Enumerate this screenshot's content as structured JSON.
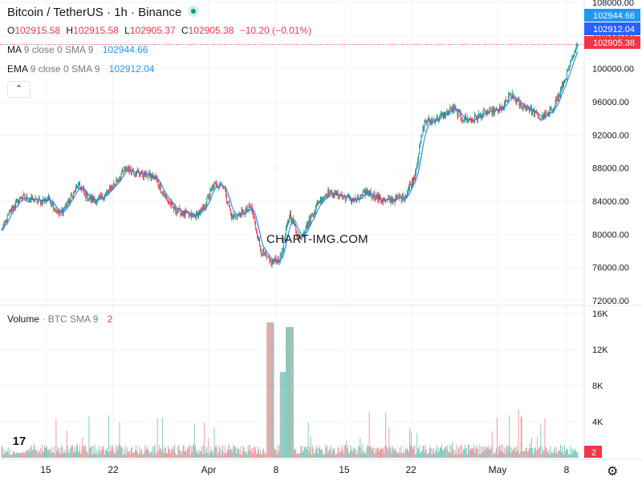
{
  "header": {
    "title": "Bitcoin / TetherUS · 1h · Binance"
  },
  "ohlc": {
    "o_label": "O",
    "o_value": "102915.58",
    "h_label": "H",
    "h_value": "102915.58",
    "l_label": "L",
    "l_value": "102905.37",
    "c_label": "C",
    "c_value": "102905.38",
    "change": "−10.20 (−0.01%)"
  },
  "indicators": {
    "ma_label": "MA",
    "ma_params": "9 close 0 SMA 9",
    "ma_value": "102944.66",
    "ema_label": "EMA",
    "ema_params": "9 close 0 SMA 9",
    "ema_value": "102912.04",
    "collapse_icon": "chevron-up-icon"
  },
  "volume_legend": {
    "label": "Volume",
    "sub": "· BTC",
    "params": "SMA 9",
    "value": "2"
  },
  "watermark": "CHART-IMG.COM",
  "logo_text": "17",
  "colors": {
    "up": "#089981",
    "down": "#f23645",
    "ma": "#2196f3",
    "ema": "#2962ff",
    "grid": "#f0f3fa",
    "text": "#131722",
    "axis_bg": "#ffffff"
  },
  "chart_data": [
    {
      "type": "candlestick",
      "title": "Bitcoin / TetherUS · 1h · Binance",
      "x_ticks": [
        "15",
        "22",
        "Apr",
        "8",
        "15",
        "22",
        "May",
        "8"
      ],
      "y_ticks": [
        "108000.00",
        "104000.00",
        "100000.00",
        "96000.00",
        "92000.00",
        "88000.00",
        "84000.00",
        "80000.00",
        "76000.00",
        "72000.00"
      ],
      "ylim": [
        72000,
        108000
      ],
      "grid": true,
      "price_labels": {
        "ma": "102944.66",
        "ema": "102912.04",
        "last": "102905.38"
      },
      "close_path": {
        "dates": [
          "Mar 10",
          "Mar 11",
          "Mar 12",
          "Mar 13",
          "Mar 14",
          "Mar 15",
          "Mar 16",
          "Mar 17",
          "Mar 18",
          "Mar 19",
          "Mar 20",
          "Mar 21",
          "Mar 22",
          "Mar 23",
          "Mar 24",
          "Mar 25",
          "Mar 26",
          "Mar 27",
          "Mar 28",
          "Mar 29",
          "Mar 30",
          "Mar 31",
          "Apr 1",
          "Apr 2",
          "Apr 3",
          "Apr 4",
          "Apr 5",
          "Apr 6",
          "Apr 7",
          "Apr 8",
          "Apr 9",
          "Apr 10",
          "Apr 11",
          "Apr 12",
          "Apr 13",
          "Apr 14",
          "Apr 15",
          "Apr 16",
          "Apr 17",
          "Apr 18",
          "Apr 19",
          "Apr 20",
          "Apr 21",
          "Apr 22",
          "Apr 23",
          "Apr 24",
          "Apr 25",
          "Apr 26",
          "Apr 27",
          "Apr 28",
          "Apr 29",
          "Apr 30",
          "May 1",
          "May 2",
          "May 3",
          "May 4",
          "May 5",
          "May 6",
          "May 7",
          "May 8",
          "May 9"
        ],
        "values": [
          80500,
          83000,
          84500,
          84200,
          84000,
          84300,
          82300,
          84000,
          86000,
          84300,
          84100,
          85000,
          86500,
          88000,
          87500,
          87200,
          86800,
          84500,
          83000,
          82500,
          82100,
          83000,
          85800,
          86200,
          82000,
          82500,
          83200,
          78000,
          76500,
          77000,
          82500,
          79500,
          81500,
          84000,
          85000,
          84800,
          84400,
          84000,
          85200,
          84500,
          84000,
          84300,
          84600,
          87000,
          93500,
          93800,
          94400,
          95200,
          94000,
          93800,
          94500,
          94800,
          95000,
          96900,
          95600,
          95200,
          94000,
          94500,
          96700,
          99800,
          102905
        ]
      }
    },
    {
      "type": "bar",
      "title": "Volume · BTC",
      "y_ticks": [
        "16K",
        "12K",
        "8K",
        "4K"
      ],
      "ylim": [
        0,
        16000
      ],
      "last_value_label": "2",
      "notable_spikes": [
        {
          "date": "Apr 7",
          "value": 15000
        },
        {
          "date": "Apr 9",
          "value": 14500
        }
      ]
    }
  ]
}
